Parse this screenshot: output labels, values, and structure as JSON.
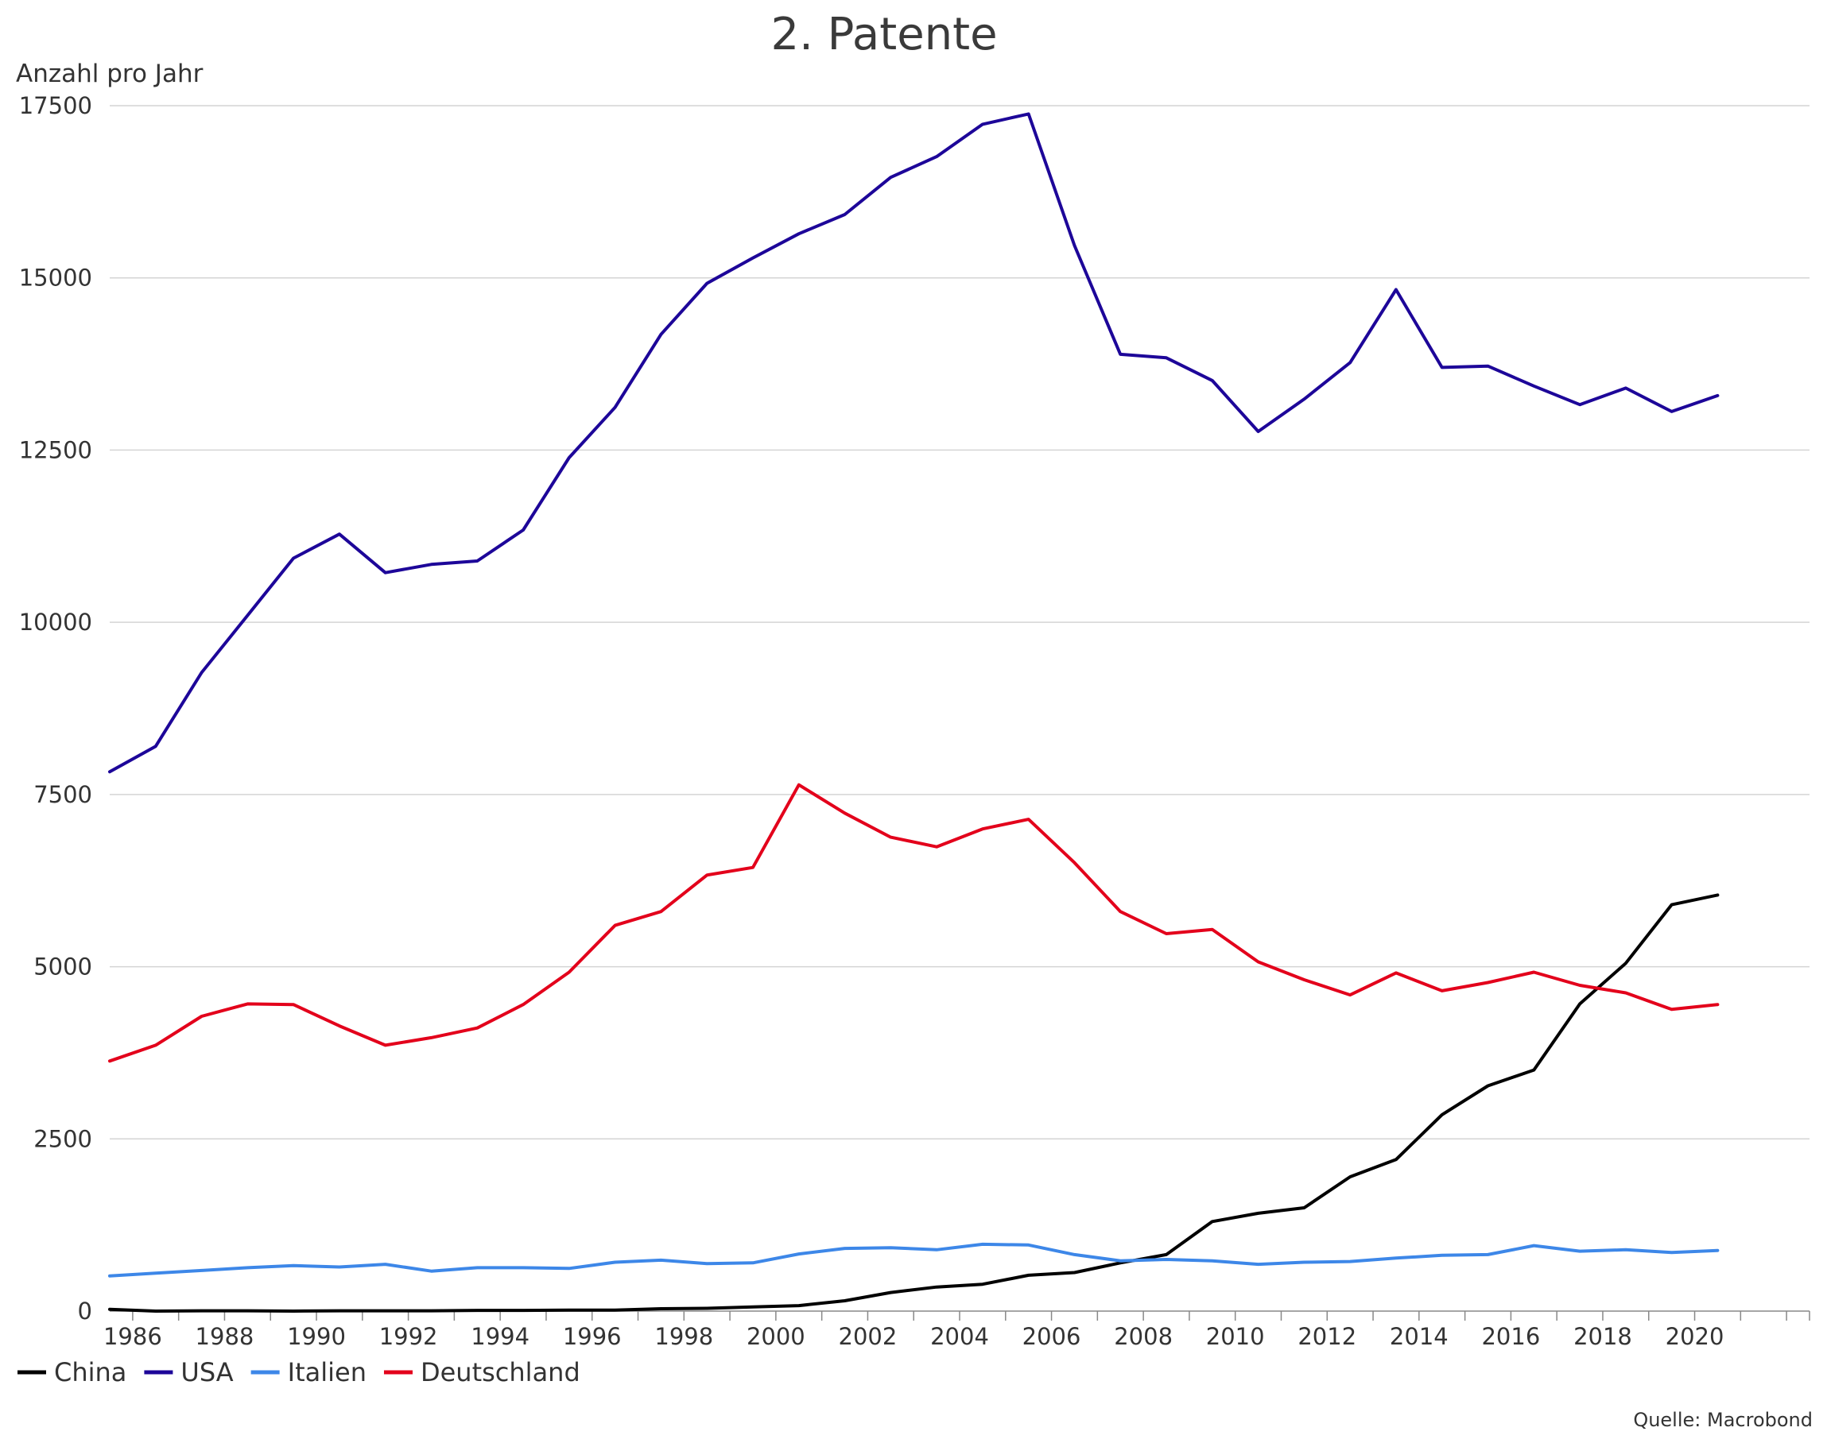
{
  "chart_data": {
    "type": "line",
    "title": "2. Patente",
    "ylabel": "Anzahl pro Jahr",
    "xlabel": "",
    "source": "Quelle: Macrobond",
    "xlim": [
      1985.5,
      2022.5
    ],
    "ylim": [
      0,
      17500
    ],
    "yticks": [
      0,
      2500,
      5000,
      7500,
      10000,
      12500,
      15000,
      17500
    ],
    "xticks": [
      1986,
      1988,
      1990,
      1992,
      1994,
      1996,
      1998,
      2000,
      2002,
      2004,
      2006,
      2008,
      2010,
      2012,
      2014,
      2016,
      2018,
      2020
    ],
    "grid": "horizontal",
    "legend_position": "bottom-left",
    "x": [
      1985.5,
      1986.5,
      1987.5,
      1988.5,
      1989.5,
      1990.5,
      1991.5,
      1992.5,
      1993.5,
      1994.5,
      1995.5,
      1996.5,
      1997.5,
      1998.5,
      1999.5,
      2000.5,
      2001.5,
      2002.5,
      2003.5,
      2004.5,
      2005.5,
      2006.5,
      2007.5,
      2008.5,
      2009.5,
      2010.5,
      2011.5,
      2012.5,
      2013.5,
      2014.5,
      2015.5,
      2016.5,
      2017.5,
      2018.5,
      2019.5,
      2020.5
    ],
    "series": [
      {
        "name": "China",
        "color": "#000000",
        "values": [
          25,
          0,
          5,
          5,
          0,
          5,
          5,
          5,
          10,
          10,
          15,
          15,
          35,
          40,
          60,
          80,
          150,
          270,
          350,
          390,
          520,
          560,
          700,
          820,
          1300,
          1420,
          1500,
          1950,
          2200,
          2850,
          3270,
          3500,
          4460,
          5050,
          5900,
          6040
        ]
      },
      {
        "name": "USA",
        "color": "#1d0699",
        "values": [
          7830,
          8200,
          9270,
          10100,
          10930,
          11280,
          10720,
          10840,
          10890,
          11340,
          12390,
          13120,
          14180,
          14920,
          15290,
          15640,
          15920,
          16460,
          16760,
          17230,
          17380,
          15470,
          13890,
          13840,
          13510,
          12770,
          13240,
          13770,
          14830,
          13700,
          13720,
          13430,
          13160,
          13400,
          13060,
          13290
        ]
      },
      {
        "name": "Italien",
        "color": "#3d87e8",
        "values": [
          510,
          550,
          590,
          630,
          660,
          640,
          680,
          580,
          630,
          630,
          620,
          710,
          740,
          690,
          700,
          830,
          910,
          920,
          890,
          970,
          960,
          820,
          730,
          750,
          730,
          680,
          710,
          720,
          770,
          810,
          820,
          950,
          870,
          890,
          850,
          880
        ]
      },
      {
        "name": "Deutschland",
        "color": "#e3001b",
        "values": [
          3630,
          3860,
          4280,
          4460,
          4450,
          4140,
          3860,
          3970,
          4110,
          4450,
          4920,
          5600,
          5800,
          6330,
          6440,
          7640,
          7230,
          6880,
          6740,
          7000,
          7140,
          6510,
          5800,
          5480,
          5540,
          5070,
          4810,
          4590,
          4910,
          4650,
          4770,
          4920,
          4730,
          4620,
          4380,
          4450
        ]
      }
    ]
  }
}
